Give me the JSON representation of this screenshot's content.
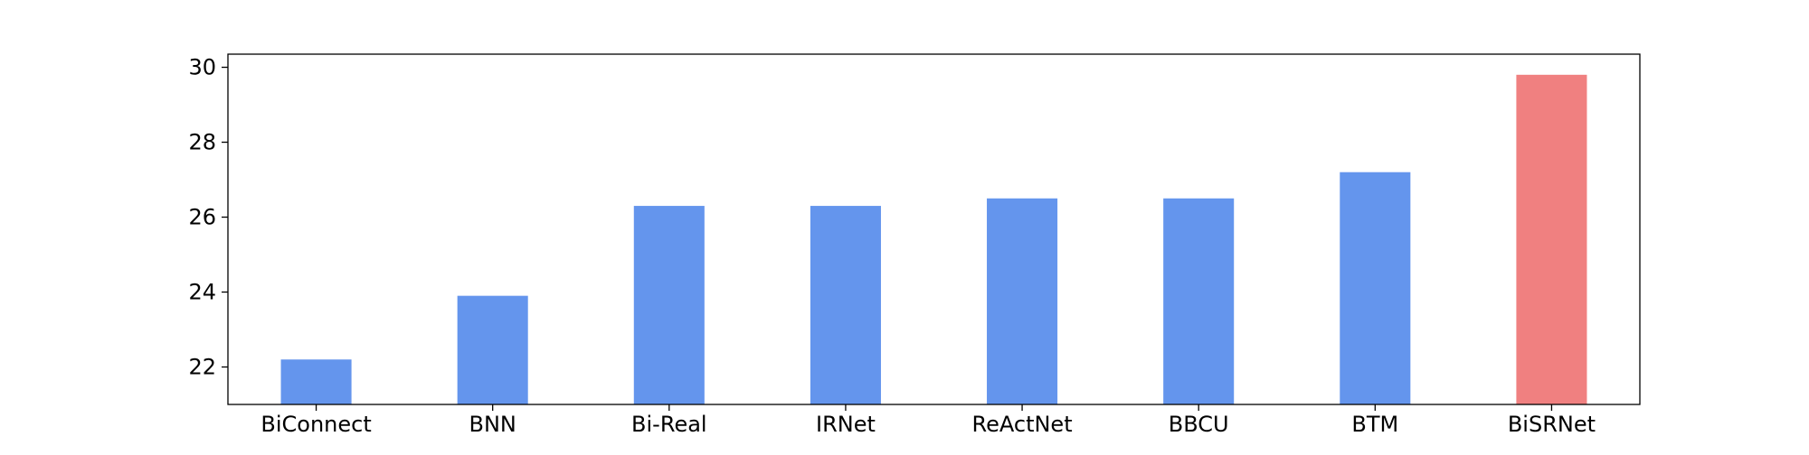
{
  "chart_data": {
    "type": "bar",
    "title": "",
    "xlabel": "",
    "ylabel": "",
    "categories": [
      "BiConnect",
      "BNN",
      "Bi-Real",
      "IRNet",
      "ReActNet",
      "BBCU",
      "BTM",
      "BiSRNet"
    ],
    "values": [
      22.2,
      23.9,
      26.3,
      26.3,
      26.5,
      26.5,
      27.2,
      29.8
    ],
    "ylim": [
      21.0,
      30.35
    ],
    "yticks": [
      22,
      24,
      26,
      28,
      30
    ],
    "ytick_labels": [
      "22",
      "24",
      "26",
      "28",
      "30"
    ],
    "bar_colors": [
      "#6495ED",
      "#6495ED",
      "#6495ED",
      "#6495ED",
      "#6495ED",
      "#6495ED",
      "#6495ED",
      "#F08080"
    ],
    "grid": false,
    "legend": "none"
  }
}
